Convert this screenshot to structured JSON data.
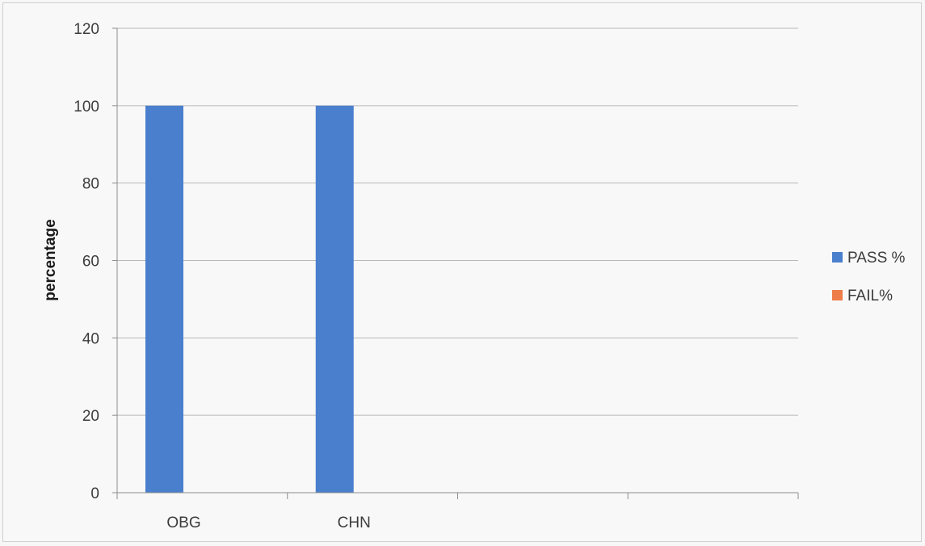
{
  "chart_data": {
    "type": "bar",
    "title": "",
    "xlabel": "",
    "ylabel": "percentage",
    "categories": [
      "OBG",
      "CHN",
      "",
      ""
    ],
    "series": [
      {
        "name": "PASS %",
        "color": "#4a7fcd",
        "values": [
          100,
          100,
          null,
          null
        ]
      },
      {
        "name": "FAIL%",
        "color": "#ee7d49",
        "values": [
          0,
          0,
          null,
          null
        ]
      }
    ],
    "ylim": [
      0,
      120
    ],
    "yticks": [
      0,
      20,
      40,
      60,
      80,
      100,
      120
    ],
    "grid": true,
    "legend_position": "right"
  }
}
